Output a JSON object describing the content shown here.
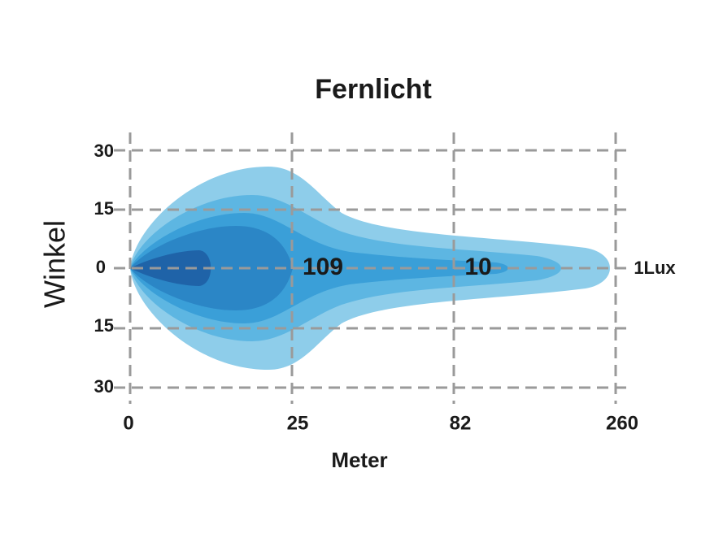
{
  "header": {
    "title": "Fernlicht"
  },
  "y_axis": {
    "label": "Winkel",
    "ticks": [
      "30",
      "15",
      "0",
      "15",
      "30"
    ]
  },
  "x_axis": {
    "label": "Meter",
    "ticks": [
      "0",
      "25",
      "82",
      "260"
    ]
  },
  "annotations": [
    "109",
    "10",
    "1Lux"
  ]
}
